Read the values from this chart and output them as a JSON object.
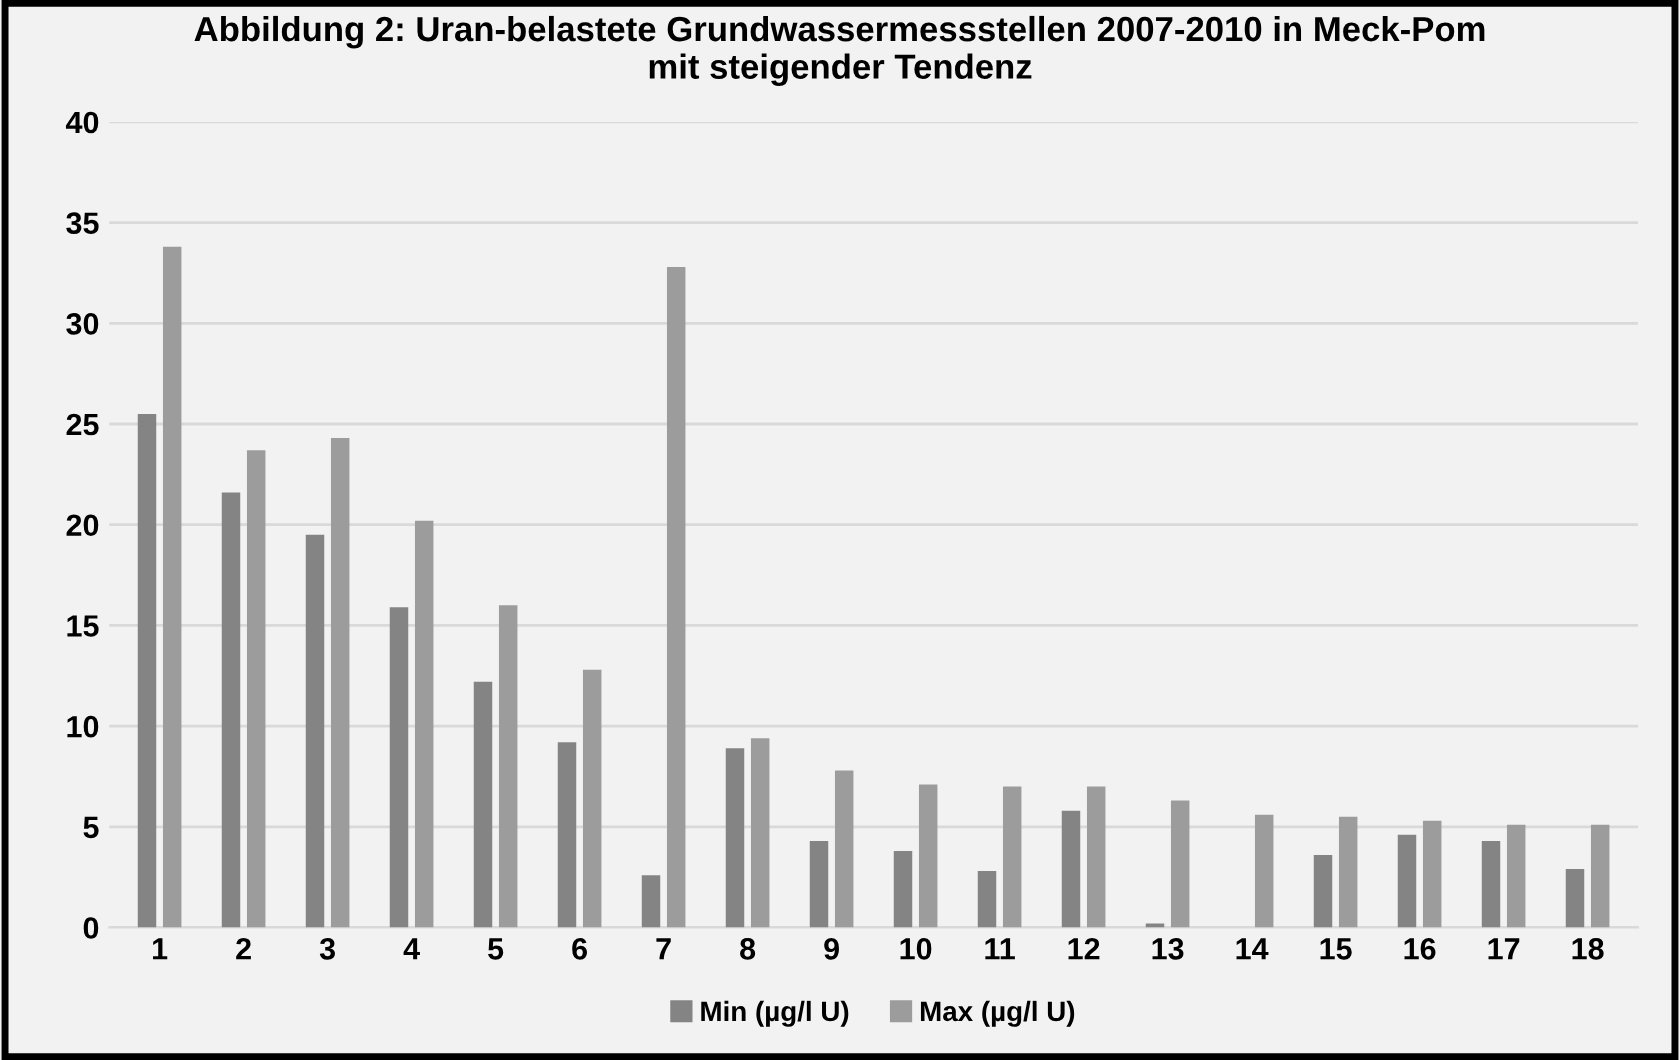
{
  "chart_data": {
    "type": "bar",
    "title": "Abbildung 2: Uran-belastete Grundwassermessstellen 2007-2010 in Meck-Pom\nmit steigender Tendenz",
    "categories": [
      "1",
      "2",
      "3",
      "4",
      "5",
      "6",
      "7",
      "8",
      "9",
      "10",
      "11",
      "12",
      "13",
      "14",
      "15",
      "16",
      "17",
      "18"
    ],
    "series": [
      {
        "name": "Min (µg/l U)",
        "color": "#848484",
        "values": [
          25.5,
          21.6,
          19.5,
          15.9,
          12.2,
          9.2,
          2.6,
          8.9,
          4.3,
          3.8,
          2.8,
          5.8,
          0.2,
          null,
          3.6,
          4.6,
          4.3,
          2.9
        ]
      },
      {
        "name": "Max (µg/l U)",
        "color": "#9c9c9c",
        "values": [
          33.8,
          23.7,
          24.3,
          20.2,
          16.0,
          12.8,
          32.8,
          9.4,
          7.8,
          7.1,
          7.0,
          7.0,
          6.3,
          5.6,
          5.5,
          5.3,
          5.1,
          5.1
        ]
      }
    ],
    "ylim": [
      0,
      40
    ],
    "yticks": [
      0,
      5,
      10,
      15,
      20,
      25,
      30,
      35,
      40
    ],
    "grid": "y",
    "legend": "bottom"
  }
}
